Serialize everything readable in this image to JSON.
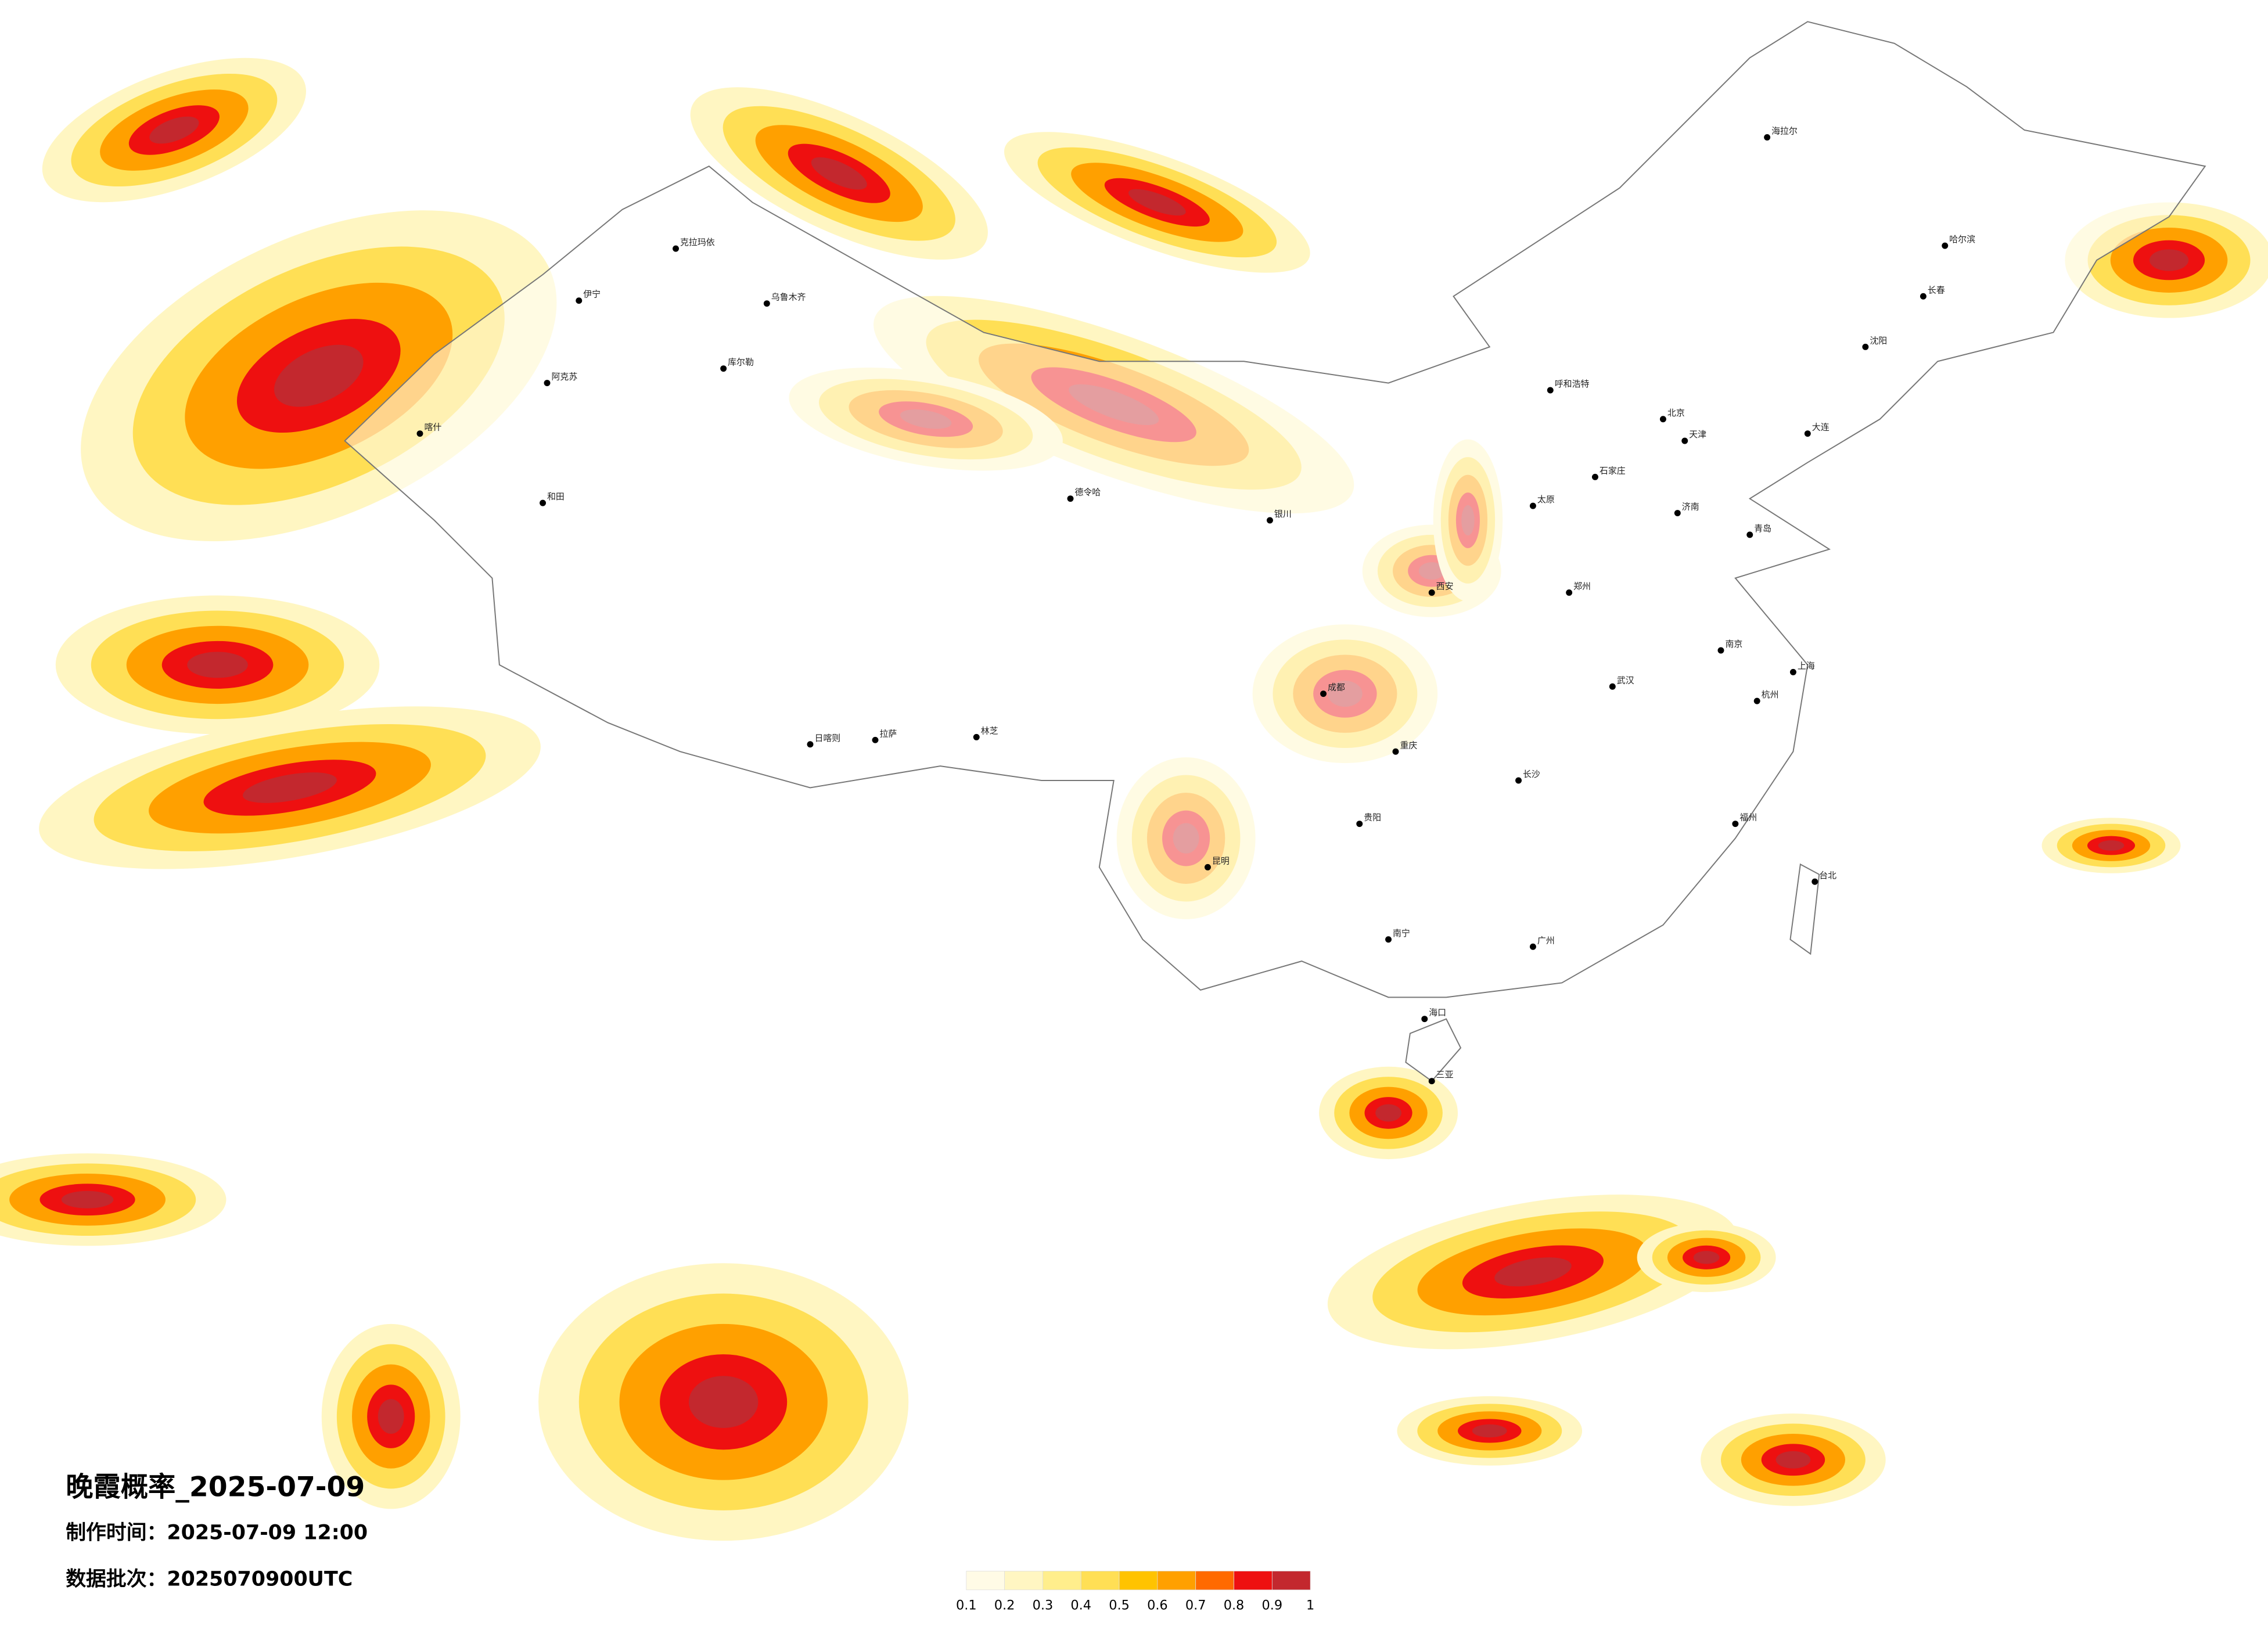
{
  "title": "晚霞概率_2025-07-09",
  "made_time": "制作时间：2025-07-09 12:00",
  "batch": "数据批次：2025070900UTC",
  "legend": {
    "ticks": [
      0.1,
      0.2,
      0.3,
      0.4,
      0.5,
      0.6,
      0.7,
      0.8,
      0.9,
      1
    ],
    "colors": [
      "#fffbe6",
      "#fff6c2",
      "#ffee8c",
      "#ffdf55",
      "#ffc300",
      "#ffa000",
      "#ff6a00",
      "#ee1010",
      "#c3282e"
    ]
  },
  "cities": [
    "伊宁",
    "克拉玛依",
    "乌鲁木齐",
    "阿克苏",
    "喀什",
    "和田",
    "库尔勒",
    "日喀则",
    "拉萨",
    "林芝",
    "德令哈",
    "银川",
    "呼和浩特",
    "北京",
    "天津",
    "石家庄",
    "太原",
    "郑州",
    "西安",
    "成都",
    "重庆",
    "贵阳",
    "昆明",
    "南宁",
    "广州",
    "长沙",
    "武汉",
    "南京",
    "上海",
    "杭州",
    "福州",
    "台北",
    "海口",
    "三亚",
    "哈尔滨",
    "长春",
    "沈阳",
    "大连",
    "济南",
    "青岛",
    "海拉尔"
  ]
}
